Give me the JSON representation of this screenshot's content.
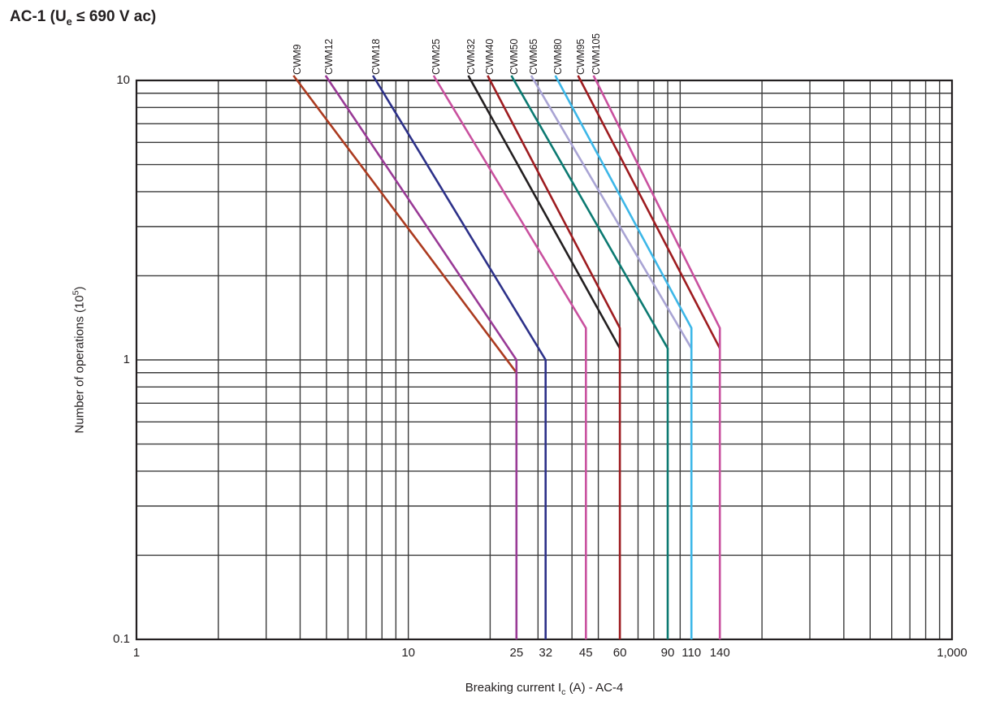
{
  "title": {
    "prefix": "AC-1 (U",
    "sub": "e",
    "suffix": " ≤ 690 V ac)"
  },
  "axes": {
    "x_label": {
      "prefix": "Breaking current I",
      "sub": "c",
      "suffix": " (A) - AC-4"
    },
    "y_label": {
      "prefix": "Number of operations (10",
      "sup": "5",
      "suffix": ")"
    }
  },
  "chart_data": {
    "type": "line",
    "title": "AC-1 (Ue ≤ 690 V ac)",
    "xlabel": "Breaking current Ic (A) - AC-4",
    "ylabel": "Number of operations (10^5)",
    "xscale": "log",
    "yscale": "log",
    "xlim": [
      1,
      1000
    ],
    "ylim": [
      0.1,
      10
    ],
    "grid": "log decades with minor lines 2-9, both axes",
    "grid_color": "#3c3c3c",
    "border_color": "#231f20",
    "x_ticks": [
      {
        "value": 1,
        "label": "1"
      },
      {
        "value": 10,
        "label": "10"
      },
      {
        "value": 25,
        "label": "25"
      },
      {
        "value": 32,
        "label": "32"
      },
      {
        "value": 45,
        "label": "45"
      },
      {
        "value": 60,
        "label": "60"
      },
      {
        "value": 90,
        "label": "90"
      },
      {
        "value": 110,
        "label": "110"
      },
      {
        "value": 140,
        "label": "140"
      },
      {
        "value": 1000,
        "label": "1,000"
      }
    ],
    "y_ticks": [
      {
        "value": 10,
        "label": "10"
      },
      {
        "value": 1,
        "label": "1"
      },
      {
        "value": 0.1,
        "label": "0.1"
      }
    ],
    "series": [
      {
        "name": "CWM9",
        "color": "#ac3b20",
        "points": [
          [
            3.9,
            10
          ],
          [
            25,
            0.9
          ]
        ]
      },
      {
        "name": "CWM12",
        "color": "#993a96",
        "points": [
          [
            5.1,
            10
          ],
          [
            25,
            1.0
          ],
          [
            25,
            0.1
          ]
        ]
      },
      {
        "name": "CWM18",
        "color": "#2d3189",
        "points": [
          [
            7.6,
            10
          ],
          [
            32,
            1.0
          ],
          [
            32,
            0.1
          ]
        ]
      },
      {
        "name": "CWM25",
        "color": "#c9519f",
        "points": [
          [
            12.7,
            10
          ],
          [
            45,
            1.3
          ],
          [
            45,
            0.1
          ]
        ]
      },
      {
        "name": "CWM32",
        "color": "#231f20",
        "points": [
          [
            17,
            10
          ],
          [
            60,
            1.1
          ]
        ]
      },
      {
        "name": "CWM40",
        "color": "#9e1c20",
        "points": [
          [
            20,
            10
          ],
          [
            60,
            1.3
          ],
          [
            60,
            0.1
          ]
        ]
      },
      {
        "name": "CWM50",
        "color": "#0c7a72",
        "points": [
          [
            24.5,
            10
          ],
          [
            90,
            1.1
          ],
          [
            90,
            0.1
          ]
        ]
      },
      {
        "name": "CWM65",
        "color": "#a9a4d4",
        "points": [
          [
            29,
            10
          ],
          [
            110,
            1.1
          ]
        ]
      },
      {
        "name": "CWM80",
        "color": "#3db7e8",
        "points": [
          [
            35.5,
            10
          ],
          [
            110,
            1.3
          ],
          [
            110,
            0.1
          ]
        ]
      },
      {
        "name": "CWM95",
        "color": "#9e1c20",
        "points": [
          [
            43,
            10
          ],
          [
            140,
            1.1
          ]
        ]
      },
      {
        "name": "CWM105",
        "color": "#c9519f",
        "points": [
          [
            49,
            10
          ],
          [
            140,
            1.3
          ],
          [
            140,
            0.1
          ]
        ]
      }
    ]
  }
}
